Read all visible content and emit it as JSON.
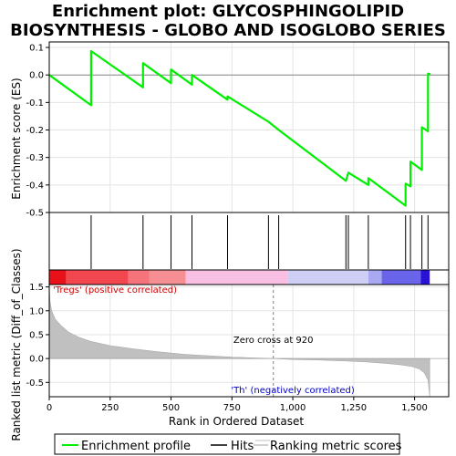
{
  "chart_data": {
    "type": "line",
    "title_lines": [
      "Enrichment plot: GLYCOSPHINGOLIPID",
      "BIOSYNTHESIS - GLOBO AND ISOGLOBO SERIES"
    ],
    "ylabel_top": "Enrichment score (ES)",
    "ylabel_bottom": "Ranked list metric (Diff_of_Classes)",
    "xlabel": "Rank in Ordered Dataset",
    "x_ticks": [
      0,
      250,
      500,
      750,
      1000,
      1250,
      1500
    ],
    "x_tick_labels": [
      "0",
      "250",
      "500",
      "750",
      "1,000",
      "1,250",
      "1,500"
    ],
    "xlim": [
      0,
      1640
    ],
    "es_ylim": [
      -0.5,
      0.12
    ],
    "es_y_ticks": [
      0.1,
      0.0,
      -0.1,
      -0.2,
      -0.3,
      -0.4,
      -0.5
    ],
    "es_y_tick_labels": [
      "0.1",
      "0.0",
      "-0.1",
      "-0.2",
      "-0.3",
      "-0.4",
      "-0.5"
    ],
    "metric_ylim": [
      -0.8,
      1.55
    ],
    "metric_y_ticks": [
      1.5,
      1.0,
      0.5,
      0.0,
      -0.5
    ],
    "metric_y_tick_labels": [
      "1.5",
      "1.0",
      "0.5",
      "0.0",
      "-0.5"
    ],
    "hits": [
      172,
      385,
      500,
      586,
      732,
      900,
      942,
      1218,
      1228,
      1310,
      1463,
      1483,
      1530,
      1555
    ],
    "es_points": [
      [
        0,
        0.0
      ],
      [
        172,
        -0.11
      ],
      [
        172,
        0.087
      ],
      [
        385,
        -0.045
      ],
      [
        385,
        0.043
      ],
      [
        500,
        -0.03
      ],
      [
        500,
        0.02
      ],
      [
        586,
        -0.035
      ],
      [
        586,
        0.0
      ],
      [
        732,
        -0.09
      ],
      [
        732,
        -0.078
      ],
      [
        900,
        -0.17
      ],
      [
        942,
        -0.2
      ],
      [
        1218,
        -0.385
      ],
      [
        1228,
        -0.355
      ],
      [
        1310,
        -0.4
      ],
      [
        1310,
        -0.375
      ],
      [
        1463,
        -0.475
      ],
      [
        1463,
        -0.395
      ],
      [
        1483,
        -0.405
      ],
      [
        1483,
        -0.315
      ],
      [
        1530,
        -0.345
      ],
      [
        1530,
        -0.19
      ],
      [
        1555,
        -0.205
      ],
      [
        1555,
        0.005
      ],
      [
        1565,
        0.003
      ]
    ],
    "metric_curve": [
      [
        0,
        1.55
      ],
      [
        3,
        1.2
      ],
      [
        10,
        1.0
      ],
      [
        25,
        0.82
      ],
      [
        50,
        0.68
      ],
      [
        80,
        0.55
      ],
      [
        120,
        0.45
      ],
      [
        170,
        0.36
      ],
      [
        250,
        0.27
      ],
      [
        350,
        0.2
      ],
      [
        450,
        0.14
      ],
      [
        550,
        0.09
      ],
      [
        650,
        0.06
      ],
      [
        750,
        0.03
      ],
      [
        850,
        0.01
      ],
      [
        920,
        0.0
      ],
      [
        1000,
        -0.02
      ],
      [
        1100,
        -0.03
      ],
      [
        1200,
        -0.05
      ],
      [
        1300,
        -0.07
      ],
      [
        1380,
        -0.1
      ],
      [
        1440,
        -0.13
      ],
      [
        1490,
        -0.17
      ],
      [
        1520,
        -0.22
      ],
      [
        1540,
        -0.3
      ],
      [
        1555,
        -0.45
      ],
      [
        1562,
        -0.8
      ]
    ],
    "zero_cross_rank": 920,
    "zero_cross_label": "Zero cross at 920",
    "pos_label": "'Tregs' (positive correlated)",
    "neg_label": "'Th' (negatively correlated)",
    "heat_segments": [
      {
        "x0": 0,
        "x1": 70,
        "color": "#e8111a"
      },
      {
        "x0": 70,
        "x1": 325,
        "color": "#f2474f"
      },
      {
        "x0": 325,
        "x1": 410,
        "color": "#f5737a"
      },
      {
        "x0": 410,
        "x1": 560,
        "color": "#f68f93"
      },
      {
        "x0": 560,
        "x1": 980,
        "color": "#f9bfe2"
      },
      {
        "x0": 980,
        "x1": 1310,
        "color": "#cfcff6"
      },
      {
        "x0": 1310,
        "x1": 1365,
        "color": "#a9a9f2"
      },
      {
        "x0": 1365,
        "x1": 1525,
        "color": "#6a64ea"
      },
      {
        "x0": 1525,
        "x1": 1562,
        "color": "#2a11d6"
      }
    ],
    "colors": {
      "es_line": "#00ee00",
      "hits": "#000000",
      "metric_fill": "#c0c0c0",
      "pos_label": "#cc0000",
      "neg_label": "#0000cc",
      "zero_line": "#808080"
    },
    "legend": [
      "Enrichment profile",
      "Hits",
      "Ranking metric scores"
    ]
  }
}
